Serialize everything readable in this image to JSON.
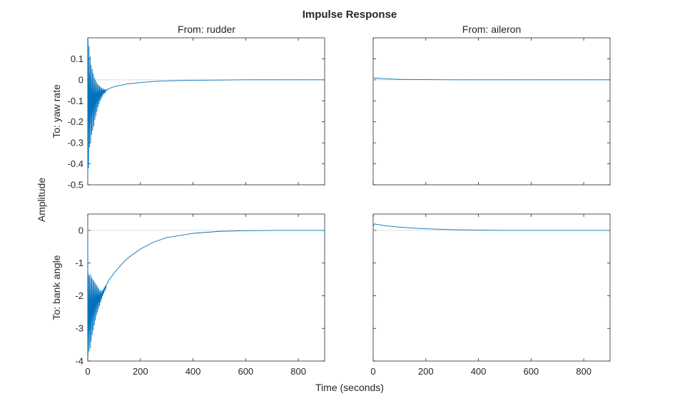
{
  "chart_data": {
    "type": "line",
    "title": "Impulse Response",
    "xlabel": "Time (seconds)",
    "ylabel": "Amplitude",
    "columns": [
      "From: rudder",
      "From: aileron"
    ],
    "rows": [
      "To: yaw rate",
      "To: bank angle"
    ],
    "xlim": [
      0,
      900
    ],
    "xticks": [
      0,
      200,
      400,
      600,
      800
    ],
    "row_axes": [
      {
        "ylim": [
          -0.5,
          0.2
        ],
        "yticks": [
          -0.5,
          -0.4,
          -0.3,
          -0.2,
          -0.1,
          0,
          0.1
        ]
      },
      {
        "ylim": [
          -4,
          0.5
        ],
        "yticks": [
          -4,
          -3,
          -2,
          -1,
          0
        ]
      }
    ],
    "grid": false,
    "line_color": "#0072BD",
    "panels": [
      {
        "row": 0,
        "col": 0,
        "x": [
          0,
          1,
          3,
          5,
          7,
          9,
          11,
          13,
          15,
          17,
          19,
          21,
          23,
          25,
          27,
          29,
          31,
          33,
          35,
          37,
          39,
          41,
          43,
          45,
          47,
          49,
          51,
          53,
          55,
          57,
          59,
          61,
          63,
          65,
          67,
          69,
          72,
          76,
          80,
          85,
          90,
          100,
          120,
          150,
          200,
          250,
          300,
          400,
          500,
          600,
          700,
          800,
          900
        ],
        "y": [
          -0.49,
          0.19,
          -0.42,
          0.16,
          -0.32,
          0.11,
          -0.3,
          0.07,
          -0.26,
          0.05,
          -0.24,
          0.03,
          -0.22,
          0.01,
          -0.19,
          -0.0,
          -0.17,
          -0.01,
          -0.15,
          -0.02,
          -0.13,
          -0.025,
          -0.115,
          -0.03,
          -0.1,
          -0.035,
          -0.09,
          -0.04,
          -0.08,
          -0.042,
          -0.07,
          -0.045,
          -0.065,
          -0.046,
          -0.06,
          -0.047,
          -0.05,
          -0.044,
          -0.043,
          -0.04,
          -0.037,
          -0.033,
          -0.027,
          -0.02,
          -0.013,
          -0.008,
          -0.005,
          -0.002,
          -0.001,
          0.0,
          0.0,
          0.0,
          0.0
        ]
      },
      {
        "row": 0,
        "col": 1,
        "x": [
          0,
          5,
          10,
          20,
          40,
          80,
          120,
          200,
          300,
          400,
          500,
          600,
          700,
          800,
          900
        ],
        "y": [
          0.01,
          0.009,
          0.008,
          0.007,
          0.005,
          0.003,
          0.002,
          0.001,
          0.0,
          0.0,
          0.0,
          0.0,
          0.0,
          0.0,
          0.0
        ]
      },
      {
        "row": 1,
        "col": 0,
        "x": [
          0,
          1,
          3,
          5,
          7,
          9,
          11,
          13,
          15,
          17,
          19,
          21,
          23,
          25,
          27,
          29,
          31,
          33,
          35,
          37,
          39,
          41,
          43,
          45,
          47,
          49,
          51,
          53,
          55,
          57,
          59,
          61,
          63,
          65,
          67,
          69,
          71,
          75,
          80,
          90,
          100,
          120,
          140,
          160,
          200,
          250,
          300,
          400,
          500,
          600,
          700,
          800,
          900
        ],
        "y": [
          -0.1,
          -3.85,
          -1.35,
          -3.7,
          -1.4,
          -3.6,
          -1.35,
          -3.4,
          -1.45,
          -3.2,
          -1.5,
          -3.05,
          -1.55,
          -2.9,
          -1.6,
          -2.75,
          -1.65,
          -2.6,
          -1.7,
          -2.5,
          -1.75,
          -2.4,
          -1.8,
          -2.3,
          -1.85,
          -2.2,
          -1.85,
          -2.1,
          -1.85,
          -2.0,
          -1.8,
          -1.92,
          -1.75,
          -1.85,
          -1.7,
          -1.78,
          -1.65,
          -1.62,
          -1.52,
          -1.42,
          -1.3,
          -1.12,
          -0.94,
          -0.8,
          -0.57,
          -0.36,
          -0.22,
          -0.09,
          -0.03,
          -0.01,
          0.0,
          0.0,
          0.0
        ]
      },
      {
        "row": 1,
        "col": 1,
        "x": [
          0,
          5,
          10,
          20,
          40,
          60,
          100,
          150,
          200,
          300,
          400,
          500,
          600,
          700,
          800,
          900
        ],
        "y": [
          0.12,
          0.2,
          0.19,
          0.18,
          0.15,
          0.13,
          0.1,
          0.07,
          0.05,
          0.02,
          0.01,
          0.0,
          0.0,
          0.0,
          0.0,
          0.0
        ]
      }
    ]
  }
}
